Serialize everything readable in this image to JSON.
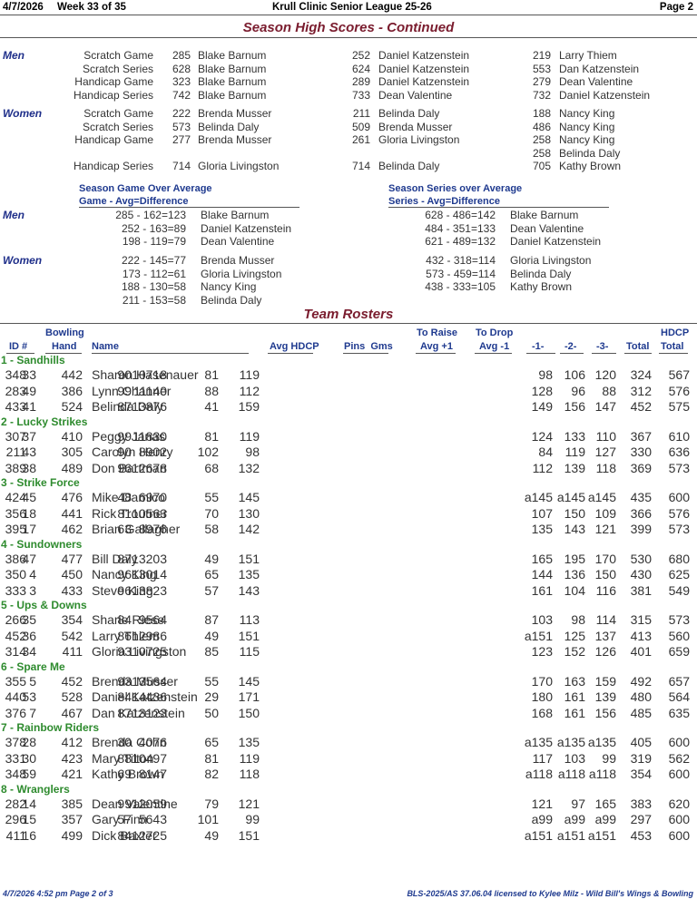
{
  "header": {
    "date": "4/7/2026",
    "week": "Week 33 of 35",
    "league": "Krull Clinic Senior League 25-26",
    "page": "Page 2"
  },
  "high_scores": {
    "title": "Season High Scores - Continued",
    "men": {
      "label": "Men",
      "rows": [
        {
          "cat": "Scratch Game",
          "s1": "285",
          "n1": "Blake Barnum",
          "s2": "252",
          "n2": "Daniel Katzenstein",
          "s3": "219",
          "n3": "Larry Thiem"
        },
        {
          "cat": "Scratch Series",
          "s1": "628",
          "n1": "Blake Barnum",
          "s2": "624",
          "n2": "Daniel Katzenstein",
          "s3": "553",
          "n3": "Dan Katzenstein"
        },
        {
          "cat": "Handicap Game",
          "s1": "323",
          "n1": "Blake Barnum",
          "s2": "289",
          "n2": "Daniel Katzenstein",
          "s3": "279",
          "n3": "Dean Valentine"
        },
        {
          "cat": "Handicap Series",
          "s1": "742",
          "n1": "Blake Barnum",
          "s2": "733",
          "n2": "Dean Valentine",
          "s3": "732",
          "n3": "Daniel Katzenstein"
        }
      ]
    },
    "women": {
      "label": "Women",
      "rows": [
        {
          "cat": "Scratch Game",
          "s1": "222",
          "n1": "Brenda Musser",
          "s2": "211",
          "n2": "Belinda Daly",
          "s3": "188",
          "n3": "Nancy King"
        },
        {
          "cat": "Scratch Series",
          "s1": "573",
          "n1": "Belinda Daly",
          "s2": "509",
          "n2": "Brenda Musser",
          "s3": "486",
          "n3": "Nancy King"
        },
        {
          "cat": "Handicap Game",
          "s1": "277",
          "n1": "Brenda Musser",
          "s2": "261",
          "n2": "Gloria Livingston",
          "s3": "258",
          "n3": "Nancy King"
        },
        {
          "cat": "",
          "s1": "",
          "n1": "",
          "s2": "",
          "n2": "",
          "s3": "258",
          "n3": "Belinda Daly"
        },
        {
          "cat": "Handicap Series",
          "s1": "714",
          "n1": "Gloria Livingston",
          "s2": "714",
          "n2": "Belinda Daly",
          "s3": "705",
          "n3": "Kathy Brown"
        }
      ]
    }
  },
  "over_average": {
    "game_title": "Season Game Over Average",
    "game_sub": "Game - Avg=Difference",
    "series_title": "Season Series over Average",
    "series_sub": "Series - Avg=Difference",
    "men_label": "Men",
    "women_label": "Women",
    "men_game": [
      {
        "calc": "285 - 162=123",
        "name": "Blake Barnum"
      },
      {
        "calc": "252 - 163=89",
        "name": "Daniel Katzenstein"
      },
      {
        "calc": "198 - 119=79",
        "name": "Dean Valentine"
      }
    ],
    "men_series": [
      {
        "calc": "628 - 486=142",
        "name": "Blake Barnum"
      },
      {
        "calc": "484 - 351=133",
        "name": "Dean Valentine"
      },
      {
        "calc": "621 - 489=132",
        "name": "Daniel Katzenstein"
      }
    ],
    "women_game": [
      {
        "calc": "222 - 145=77",
        "name": "Brenda Musser"
      },
      {
        "calc": "173 - 112=61",
        "name": "Gloria Livingston"
      },
      {
        "calc": "188 - 130=58",
        "name": "Nancy King"
      },
      {
        "calc": "211 - 153=58",
        "name": "Belinda Daly"
      }
    ],
    "women_series": [
      {
        "calc": "432 - 318=114",
        "name": "Gloria Livingston"
      },
      {
        "calc": "573 - 459=114",
        "name": "Belinda Daly"
      },
      {
        "calc": "438 - 333=105",
        "name": "Kathy Brown"
      }
    ]
  },
  "rosters": {
    "title": "Team Rosters",
    "columns": {
      "id": "ID #",
      "bowling": "Bowling",
      "hand": "Hand",
      "name": "Name",
      "avg_hdcp": "Avg HDCP",
      "pins_gms": "Pins  Gms",
      "to_raise": "To Raise",
      "avg_plus": "Avg +1",
      "to_drop": "To Drop",
      "avg_minus": "Avg -1",
      "g1": "-1-",
      "g2": "-2-",
      "g3": "-3-",
      "total": "Total",
      "hdcp": "HDCP",
      "hdcp_total": "Total"
    },
    "teams": [
      {
        "name": "1 - Sandhills",
        "players": [
          [
            "33",
            "Sharon Hasenauer",
            "119",
            "81",
            "10718",
            "90",
            "442",
            "348",
            "98",
            "106",
            "120",
            "324",
            "567"
          ],
          [
            "49",
            "Lynn Channer",
            "112",
            "88",
            "11140",
            "99",
            "386",
            "283",
            "128",
            "96",
            "88",
            "312",
            "576"
          ],
          [
            "41",
            "Belinda Daly",
            "159",
            "41",
            "13876",
            "87",
            "524",
            "433",
            "149",
            "156",
            "147",
            "452",
            "575"
          ]
        ]
      },
      {
        "name": "2 - Lucky Strikes",
        "players": [
          [
            "37",
            "Peggy Janas",
            "119",
            "81",
            "11830",
            "99",
            "410",
            "307",
            "124",
            "133",
            "110",
            "367",
            "610"
          ],
          [
            "43",
            "Carolyn Henry",
            "98",
            "102",
            "8902",
            "90",
            "305",
            "211",
            "84",
            "119",
            "127",
            "330",
            "636"
          ],
          [
            "38",
            "Don Bartman",
            "132",
            "68",
            "12678",
            "96",
            "489",
            "389",
            "112",
            "139",
            "118",
            "369",
            "573"
          ]
        ]
      },
      {
        "name": "3 - Strike Force",
        "players": [
          [
            "45",
            "Mike Damico",
            "145",
            "55",
            "6970",
            "48",
            "476",
            "424",
            "a145",
            "a145",
            "a145",
            "435",
            "600"
          ],
          [
            "18",
            "Rick Troutner",
            "130",
            "70",
            "10563",
            "81",
            "441",
            "356",
            "107",
            "150",
            "109",
            "366",
            "576"
          ],
          [
            "17",
            "Brian Gallagher",
            "142",
            "58",
            "8976",
            "63",
            "462",
            "395",
            "135",
            "143",
            "121",
            "399",
            "573"
          ]
        ]
      },
      {
        "name": "4 - Sundowners",
        "players": [
          [
            "47",
            "Bill Daly",
            "151",
            "49",
            "13203",
            "87",
            "477",
            "386",
            "165",
            "195",
            "170",
            "530",
            "680"
          ],
          [
            "4",
            "Nancy King",
            "135",
            "65",
            "13014",
            "96",
            "450",
            "350",
            "144",
            "136",
            "150",
            "430",
            "625"
          ],
          [
            "3",
            "Steve King",
            "143",
            "57",
            "13823",
            "96",
            "433",
            "333",
            "161",
            "104",
            "116",
            "381",
            "549"
          ]
        ]
      },
      {
        "name": "5 - Ups & Downs",
        "players": [
          [
            "35",
            "Sharie Riese",
            "113",
            "87",
            "9564",
            "84",
            "354",
            "266",
            "103",
            "98",
            "114",
            "315",
            "573"
          ],
          [
            "36",
            "Larry Thiem",
            "151",
            "49",
            "12986",
            "86",
            "542",
            "452",
            "a151",
            "125",
            "137",
            "413",
            "560"
          ],
          [
            "34",
            "Gloria Livingston",
            "115",
            "85",
            "10725",
            "93",
            "411",
            "314",
            "123",
            "152",
            "126",
            "401",
            "659"
          ]
        ]
      },
      {
        "name": "6 - Spare Me",
        "players": [
          [
            "5",
            "Brenda Musser",
            "145",
            "55",
            "13564",
            "93",
            "452",
            "355",
            "170",
            "163",
            "159",
            "492",
            "657"
          ],
          [
            "53",
            "Daniel Katzenstein",
            "171",
            "29",
            "14436",
            "84",
            "528",
            "440",
            "180",
            "161",
            "139",
            "480",
            "564"
          ],
          [
            "7",
            "Dan Katzenstein",
            "150",
            "50",
            "13123",
            "87",
            "467",
            "376",
            "168",
            "161",
            "156",
            "485",
            "635"
          ]
        ]
      },
      {
        "name": "7 - Rainbow Riders",
        "players": [
          [
            "28",
            "Brenda Cohn",
            "135",
            "65",
            "4076",
            "30",
            "412",
            "378",
            "a135",
            "a135",
            "a135",
            "405",
            "600"
          ],
          [
            "30",
            "Mary Tilton",
            "119",
            "81",
            "10497",
            "88",
            "423",
            "331",
            "117",
            "103",
            "99",
            "319",
            "562"
          ],
          [
            "59",
            "Kathy Brown",
            "118",
            "82",
            "8147",
            "69",
            "421",
            "348",
            "a118",
            "a118",
            "a118",
            "354",
            "600"
          ]
        ]
      },
      {
        "name": "8 - Wranglers",
        "players": [
          [
            "14",
            "Dean Valentine",
            "121",
            "79",
            "12059",
            "99",
            "385",
            "282",
            "121",
            "97",
            "165",
            "383",
            "620"
          ],
          [
            "15",
            "Gary Finn",
            "99",
            "101",
            "5643",
            "57",
            "357",
            "296",
            "a99",
            "a99",
            "a99",
            "297",
            "600"
          ],
          [
            "16",
            "Dick Baxter",
            "151",
            "49",
            "12725",
            "84",
            "499",
            "411",
            "a151",
            "a151",
            "a151",
            "453",
            "600"
          ]
        ]
      }
    ]
  },
  "footer": {
    "left": "4/7/2026  4:52 pm  Page 2 of 3",
    "right": "BLS-2025/AS 37.06.04 licensed to Kylee Milz - Wild Bill's Wings & Bowling"
  }
}
